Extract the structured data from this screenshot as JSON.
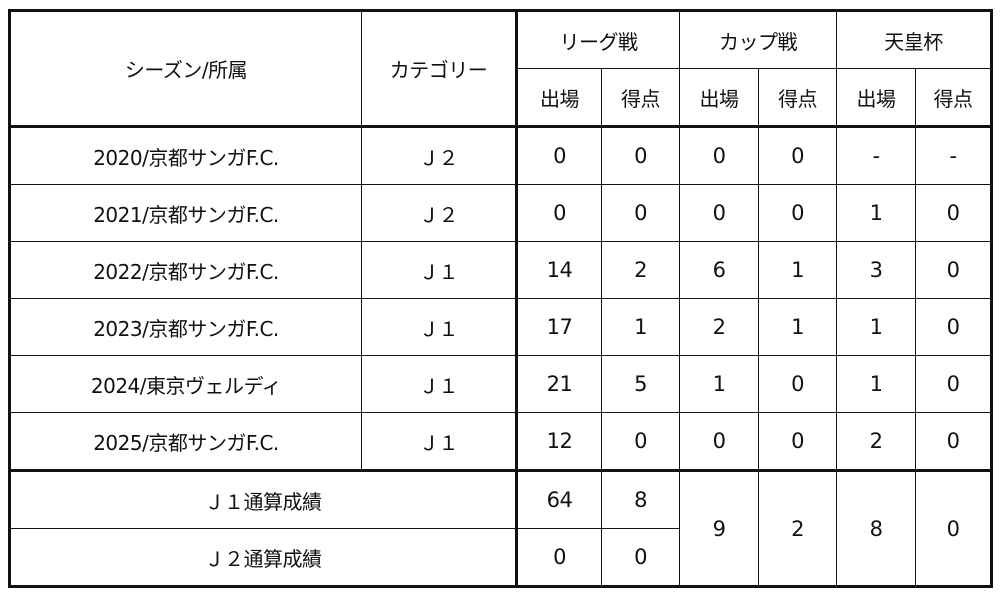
{
  "headers": {
    "season": "シーズン/所属",
    "category": "カテゴリー",
    "league": "リーグ戦",
    "cup": "カップ戦",
    "emperor": "天皇杯",
    "apps": "出場",
    "goals": "得点"
  },
  "rows": [
    {
      "season": "2020/京都サンガF.C.",
      "category": "Ｊ２",
      "league_apps": "0",
      "league_goals": "0",
      "cup_apps": "0",
      "cup_goals": "0",
      "emp_apps": "-",
      "emp_goals": "-"
    },
    {
      "season": "2021/京都サンガF.C.",
      "category": "Ｊ２",
      "league_apps": "0",
      "league_goals": "0",
      "cup_apps": "0",
      "cup_goals": "0",
      "emp_apps": "1",
      "emp_goals": "0"
    },
    {
      "season": "2022/京都サンガF.C.",
      "category": "Ｊ１",
      "league_apps": "14",
      "league_goals": "2",
      "cup_apps": "6",
      "cup_goals": "1",
      "emp_apps": "3",
      "emp_goals": "0"
    },
    {
      "season": "2023/京都サンガF.C.",
      "category": "Ｊ１",
      "league_apps": "17",
      "league_goals": "1",
      "cup_apps": "2",
      "cup_goals": "1",
      "emp_apps": "1",
      "emp_goals": "0"
    },
    {
      "season": "2024/東京ヴェルディ",
      "category": "Ｊ１",
      "league_apps": "21",
      "league_goals": "5",
      "cup_apps": "1",
      "cup_goals": "0",
      "emp_apps": "1",
      "emp_goals": "0"
    },
    {
      "season": "2025/京都サンガF.C.",
      "category": "Ｊ１",
      "league_apps": "12",
      "league_goals": "0",
      "cup_apps": "0",
      "cup_goals": "0",
      "emp_apps": "2",
      "emp_goals": "0"
    }
  ],
  "totals": {
    "j1_label": "Ｊ１通算成績",
    "j1_league_apps": "64",
    "j1_league_goals": "8",
    "j2_label": "Ｊ２通算成績",
    "j2_league_apps": "0",
    "j2_league_goals": "0",
    "cup_apps": "9",
    "cup_goals": "2",
    "emp_apps": "8",
    "emp_goals": "0"
  }
}
